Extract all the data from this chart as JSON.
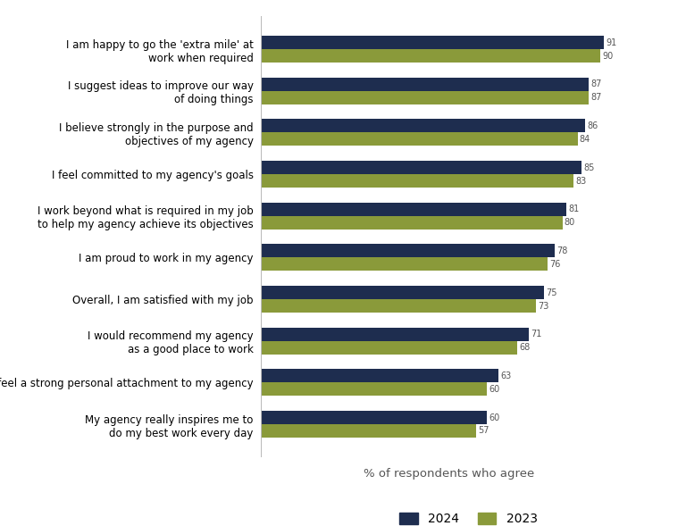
{
  "categories": [
    "I am happy to go the 'extra mile' at\nwork when required",
    "I suggest ideas to improve our way\nof doing things",
    "I believe strongly in the purpose and\nobjectives of my agency",
    "I feel committed to my agency's goals",
    "I work beyond what is required in my job\nto help my agency achieve its objectives",
    "I am proud to work in my agency",
    "Overall, I am satisfied with my job",
    "I would recommend my agency\nas a good place to work",
    "I feel a strong personal attachment to my agency",
    "My agency really inspires me to\ndo my best work every day"
  ],
  "values_2024": [
    91,
    87,
    86,
    85,
    81,
    78,
    75,
    71,
    63,
    60
  ],
  "values_2023": [
    90,
    87,
    84,
    83,
    80,
    76,
    73,
    68,
    60,
    57
  ],
  "color_2024": "#1e2d4f",
  "color_2023": "#8a9a3a",
  "xlabel": "% of respondents who agree",
  "legend_2024": "2024",
  "legend_2023": "2023",
  "xlim": [
    0,
    100
  ],
  "bar_height": 0.32,
  "background_color": "#ffffff",
  "label_fontsize": 8.5,
  "tick_fontsize": 9,
  "xlabel_fontsize": 9.5,
  "value_fontsize": 7.0
}
